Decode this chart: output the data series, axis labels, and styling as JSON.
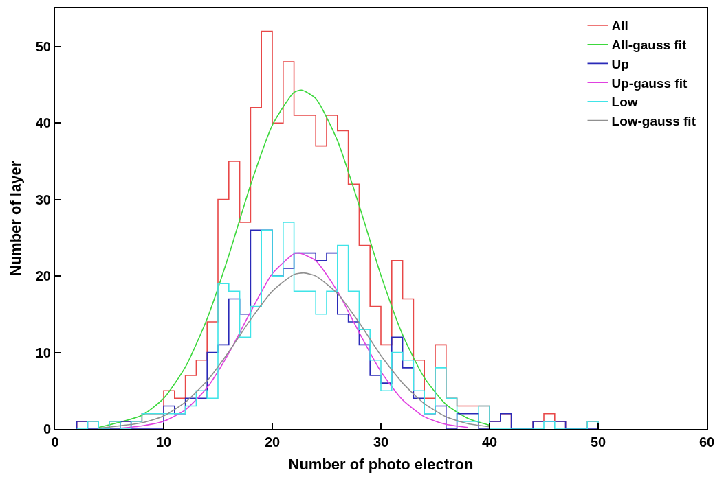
{
  "chart_data": {
    "type": "histogram",
    "xlabel": "Number of photo electron",
    "ylabel": "Number of layer",
    "bins": [
      2,
      3,
      4,
      5,
      6,
      7,
      8,
      9,
      10,
      11,
      12,
      13,
      14,
      15,
      16,
      17,
      18,
      19,
      20,
      21,
      22,
      23,
      24,
      25,
      26,
      27,
      28,
      29,
      30,
      31,
      32,
      33,
      34,
      35,
      36,
      37,
      38,
      39,
      40,
      41,
      42,
      43,
      44,
      45,
      46,
      47,
      48,
      49,
      50
    ],
    "series": [
      {
        "name": "All",
        "color": "#e84848",
        "values": [
          1,
          1,
          0,
          1,
          1,
          1,
          2,
          2,
          5,
          4,
          7,
          9,
          14,
          30,
          35,
          27,
          42,
          52,
          40,
          48,
          41,
          41,
          37,
          41,
          39,
          32,
          24,
          16,
          11,
          22,
          17,
          9,
          4,
          11,
          4,
          3,
          3,
          3,
          1,
          2,
          0,
          0,
          1,
          2,
          1,
          0,
          0,
          1
        ]
      },
      {
        "name": "All-gauss fit",
        "type": "line",
        "color": "#3cd83c",
        "x": [
          4,
          8,
          10,
          12,
          14,
          16,
          18,
          20,
          22,
          22.7,
          24,
          26,
          28,
          30,
          32,
          34,
          36,
          38,
          40
        ],
        "values": [
          0.2,
          1.8,
          4.0,
          8.1,
          14.4,
          22.7,
          31.9,
          39.7,
          44.0,
          44.3,
          43.2,
          37.7,
          29.2,
          20.1,
          12.3,
          6.7,
          3.2,
          1.4,
          0.5
        ]
      },
      {
        "name": "Up",
        "color": "#2a2ab8",
        "values": [
          1,
          0,
          0,
          0,
          1,
          0,
          0,
          0,
          3,
          2,
          4,
          4,
          10,
          11,
          17,
          15,
          26,
          26,
          20,
          21,
          23,
          23,
          22,
          23,
          15,
          14,
          11,
          7,
          6,
          12,
          8,
          4,
          2,
          3,
          0,
          2,
          2,
          0,
          1,
          2,
          0,
          0,
          1,
          1,
          1,
          0,
          0,
          0
        ]
      },
      {
        "name": "Up-gauss fit",
        "type": "line",
        "color": "#e040e0",
        "x": [
          6,
          8,
          10,
          12,
          14,
          16,
          18,
          20,
          22,
          22.5,
          24,
          26,
          28,
          30,
          32,
          34,
          36,
          38
        ],
        "values": [
          0.1,
          0.4,
          1.0,
          2.5,
          5.4,
          9.9,
          15.3,
          20.3,
          22.9,
          23,
          22.0,
          18.0,
          12.6,
          7.5,
          3.8,
          1.6,
          0.6,
          0.2
        ]
      },
      {
        "name": "Low",
        "color": "#40e4e8",
        "values": [
          0,
          1,
          0,
          1,
          0,
          1,
          2,
          2,
          2,
          2,
          3,
          5,
          4,
          19,
          18,
          12,
          16,
          26,
          20,
          27,
          18,
          18,
          15,
          18,
          24,
          18,
          13,
          9,
          5,
          10,
          9,
          5,
          2,
          8,
          4,
          1,
          1,
          3,
          0,
          0,
          0,
          0,
          0,
          1,
          0,
          0,
          0,
          1
        ]
      },
      {
        "name": "Low-gauss fit",
        "type": "line",
        "color": "#909090",
        "x": [
          4,
          8,
          10,
          12,
          14,
          16,
          18,
          20,
          22,
          22.9,
          24,
          26,
          28,
          30,
          32,
          34,
          36,
          38,
          40
        ],
        "values": [
          0.1,
          0.8,
          1.7,
          3.5,
          6.3,
          10.1,
          14.3,
          18.0,
          20.2,
          20.4,
          20.0,
          17.7,
          13.9,
          9.6,
          6.0,
          3.3,
          1.6,
          0.7,
          0.3
        ]
      }
    ],
    "xlim": [
      0,
      60
    ],
    "xticks": [
      0,
      10,
      20,
      30,
      40,
      50,
      60
    ],
    "ylim": [
      0,
      55
    ],
    "yticks": [
      0,
      10,
      20,
      30,
      40,
      50
    ],
    "legend": "top right",
    "marker": "none",
    "line_style": "solid"
  }
}
